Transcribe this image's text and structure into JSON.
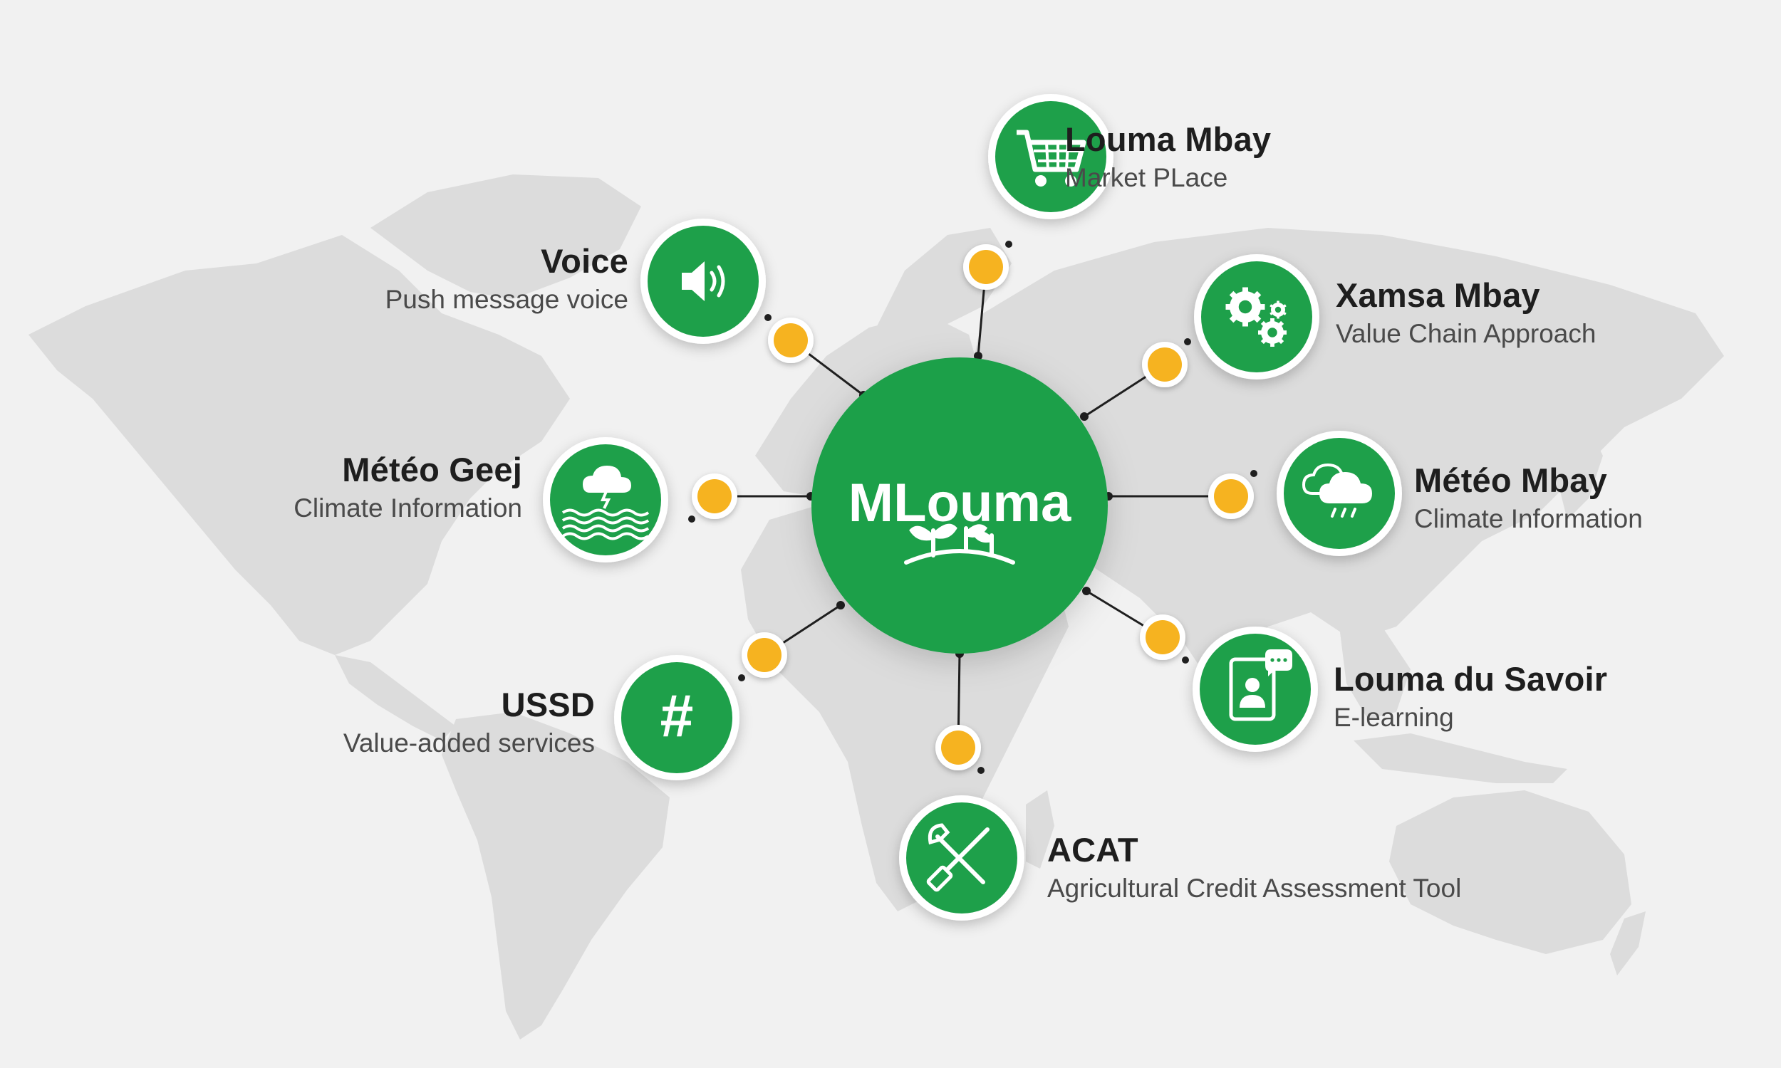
{
  "hub": {
    "name": "MLouma",
    "icon": "sprouts-icon"
  },
  "colors": {
    "green": "#1ea04a",
    "accent": "#f6b320",
    "line": "#1f1f1f",
    "map": "#dcdcdc",
    "background": "#f1f1f1"
  },
  "services": [
    {
      "key": "louma-mbay",
      "title": "Louma Mbay",
      "subtitle": "Market PLace",
      "icon": "shopping-cart-icon"
    },
    {
      "key": "voice",
      "title": "Voice",
      "subtitle": "Push message voice",
      "icon": "speaker-icon"
    },
    {
      "key": "xamsa-mbay",
      "title": "Xamsa Mbay",
      "subtitle": "Value Chain Approach",
      "icon": "gears-icon"
    },
    {
      "key": "meteo-geej",
      "title": "Météo Geej",
      "subtitle": "Climate Information",
      "icon": "storm-waves-icon"
    },
    {
      "key": "meteo-mbay",
      "title": "Météo Mbay",
      "subtitle": "Climate Information",
      "icon": "rain-cloud-icon"
    },
    {
      "key": "ussd",
      "title": "USSD",
      "subtitle": "Value-added services",
      "icon": "hash-icon"
    },
    {
      "key": "louma-du-savoir",
      "title": "Louma du Savoir",
      "subtitle": "E-learning",
      "icon": "tablet-chat-icon"
    },
    {
      "key": "acat",
      "title": "ACAT",
      "subtitle": "Agricultural Credit Assessment Tool",
      "icon": "tools-icon"
    }
  ]
}
